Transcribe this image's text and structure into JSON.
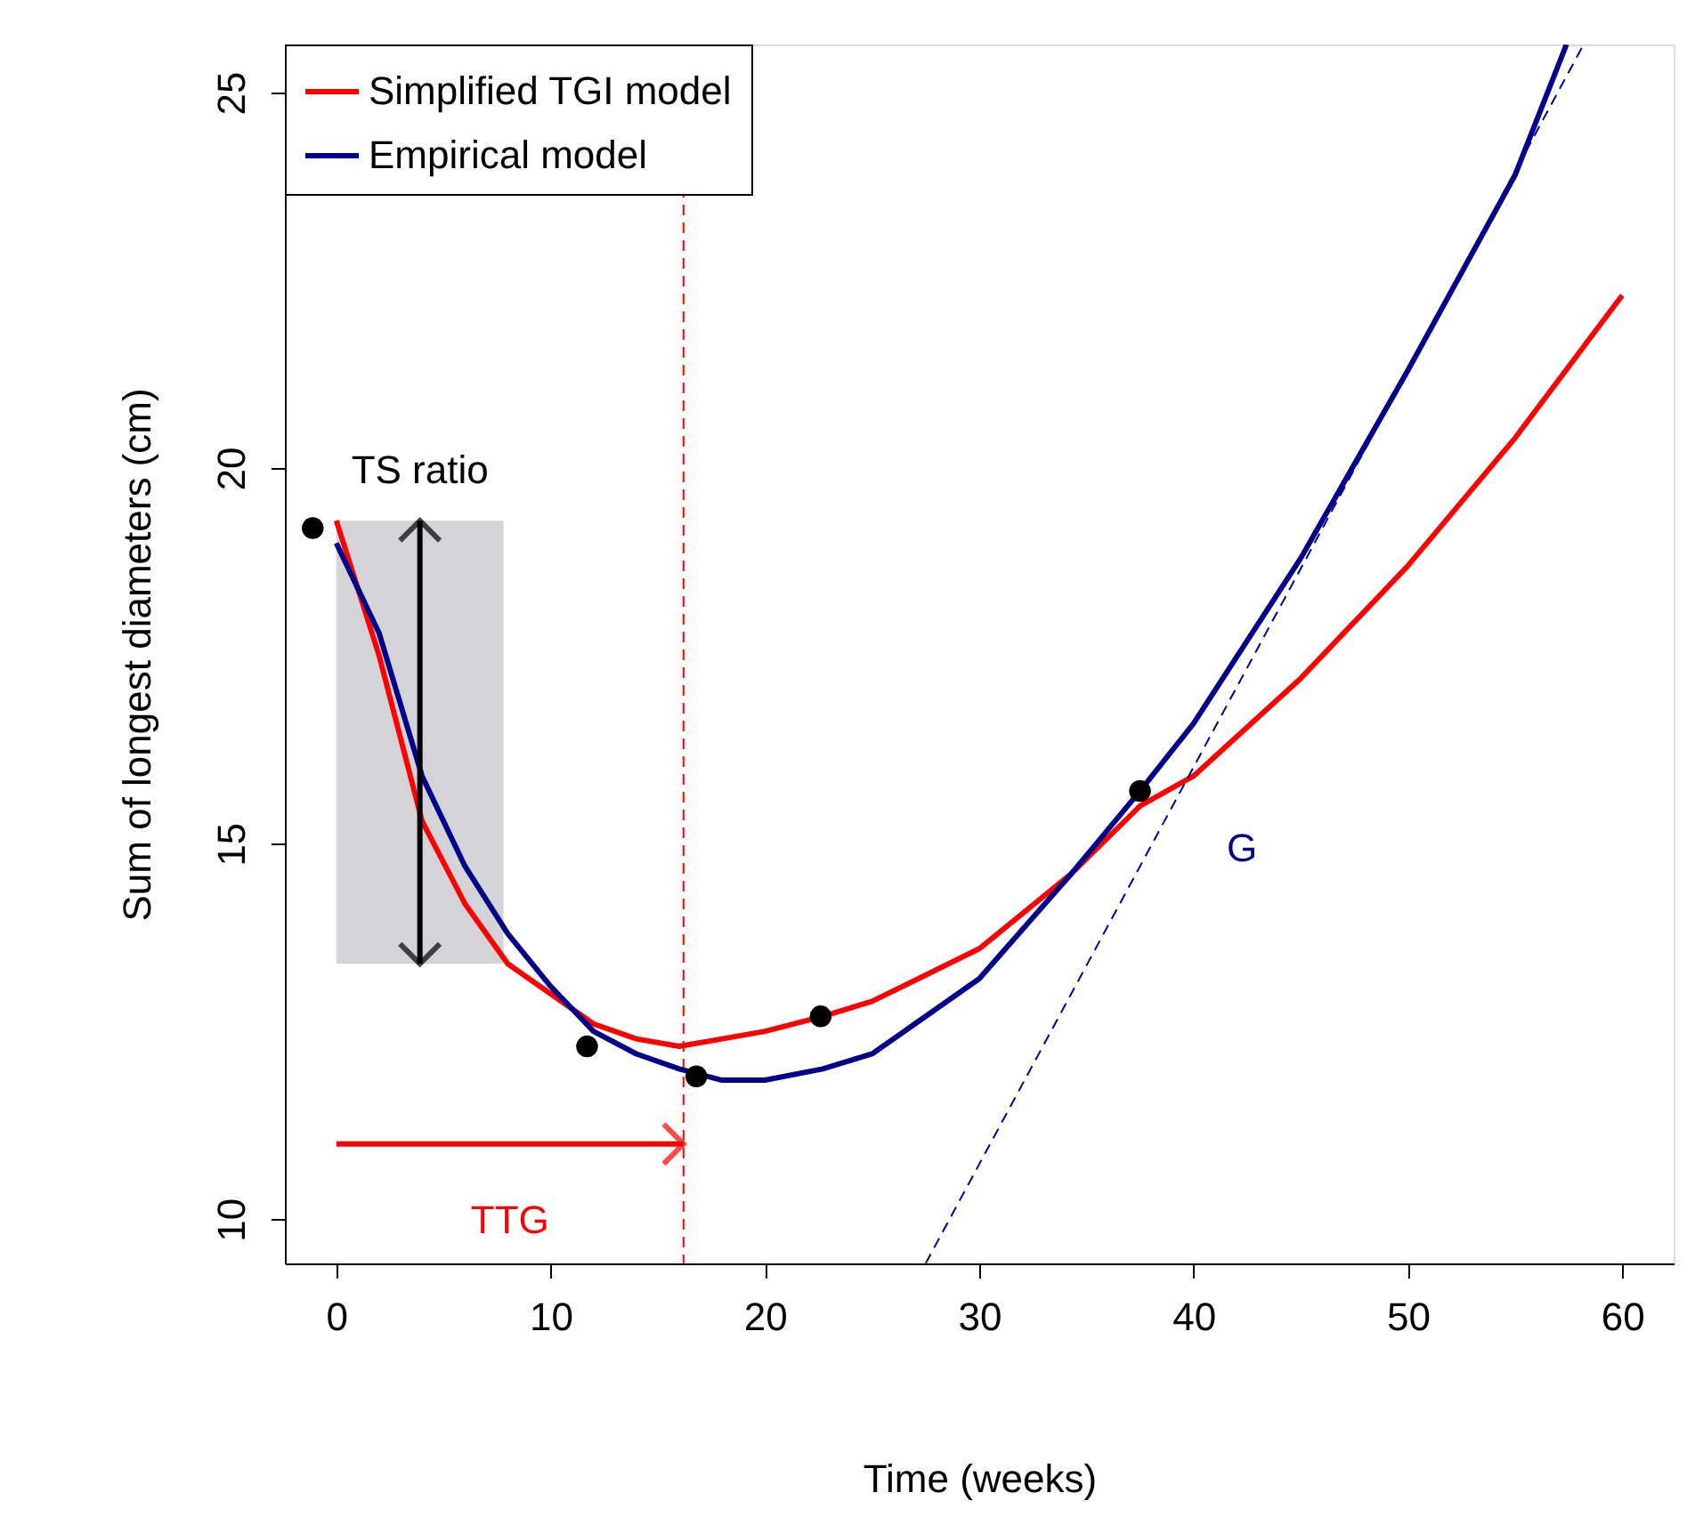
{
  "chart_data": {
    "type": "line",
    "xlabel": "Time (weeks)",
    "ylabel": "Sum of longest diameters (cm)",
    "xlim": [
      -2.4,
      62.4
    ],
    "ylim": [
      9.41,
      25.64
    ],
    "xticks": [
      0,
      10,
      20,
      30,
      40,
      50,
      60
    ],
    "yticks": [
      10,
      15,
      20,
      25
    ],
    "grid": false,
    "legend": "top left",
    "series": [
      {
        "name": "Simplified TGI model",
        "color": "#ff0000",
        "line_style": "solid",
        "x": [
          0,
          2,
          4,
          6,
          8,
          10,
          12,
          14,
          16,
          18,
          20,
          22.7,
          25,
          30,
          34.3,
          37.5,
          40,
          45,
          50,
          55,
          60
        ],
        "values": [
          19.3,
          17.5,
          15.3,
          14.2,
          13.4,
          13.0,
          12.6,
          12.4,
          12.3,
          12.4,
          12.5,
          12.7,
          12.9,
          13.6,
          14.6,
          15.5,
          15.9,
          17.2,
          18.7,
          20.4,
          22.3
        ]
      },
      {
        "name": "Empirical model",
        "color": "#00008b",
        "line_style": "solid",
        "x": [
          0,
          2,
          4,
          6,
          8,
          10,
          12,
          14,
          16,
          18,
          20,
          22.7,
          25,
          30,
          34.3,
          37.5,
          40,
          45,
          50,
          55,
          57.4
        ],
        "values": [
          19.0,
          17.8,
          15.9,
          14.7,
          13.8,
          13.1,
          12.5,
          12.2,
          12.0,
          11.85,
          11.85,
          12.0,
          12.2,
          13.2,
          14.6,
          15.7,
          16.6,
          18.8,
          21.3,
          23.9,
          25.64
        ]
      },
      {
        "type": "scatter",
        "color": "#000000",
        "marker": "circle",
        "x": [
          -1.1,
          11.7,
          16.8,
          22.6,
          37.5
        ],
        "values": [
          19.2,
          12.3,
          11.9,
          12.7,
          15.7
        ]
      },
      {
        "color": "#00008b",
        "line_style": "dashed",
        "x": [
          27.5,
          58.2
        ],
        "values": [
          9.41,
          25.64
        ]
      }
    ],
    "ref_lines": [
      {
        "axis": "x",
        "value": 16.2,
        "color": "#ff0000",
        "line_style": "dashed"
      }
    ],
    "bands": [
      {
        "axis": "y",
        "from": 13.4,
        "to": 19.3,
        "color": "#d3d3d8"
      }
    ],
    "annotations": [
      {
        "text": "TS ratio",
        "x": 3.9,
        "y": 19.3
      },
      "TTG",
      "G"
    ]
  }
}
